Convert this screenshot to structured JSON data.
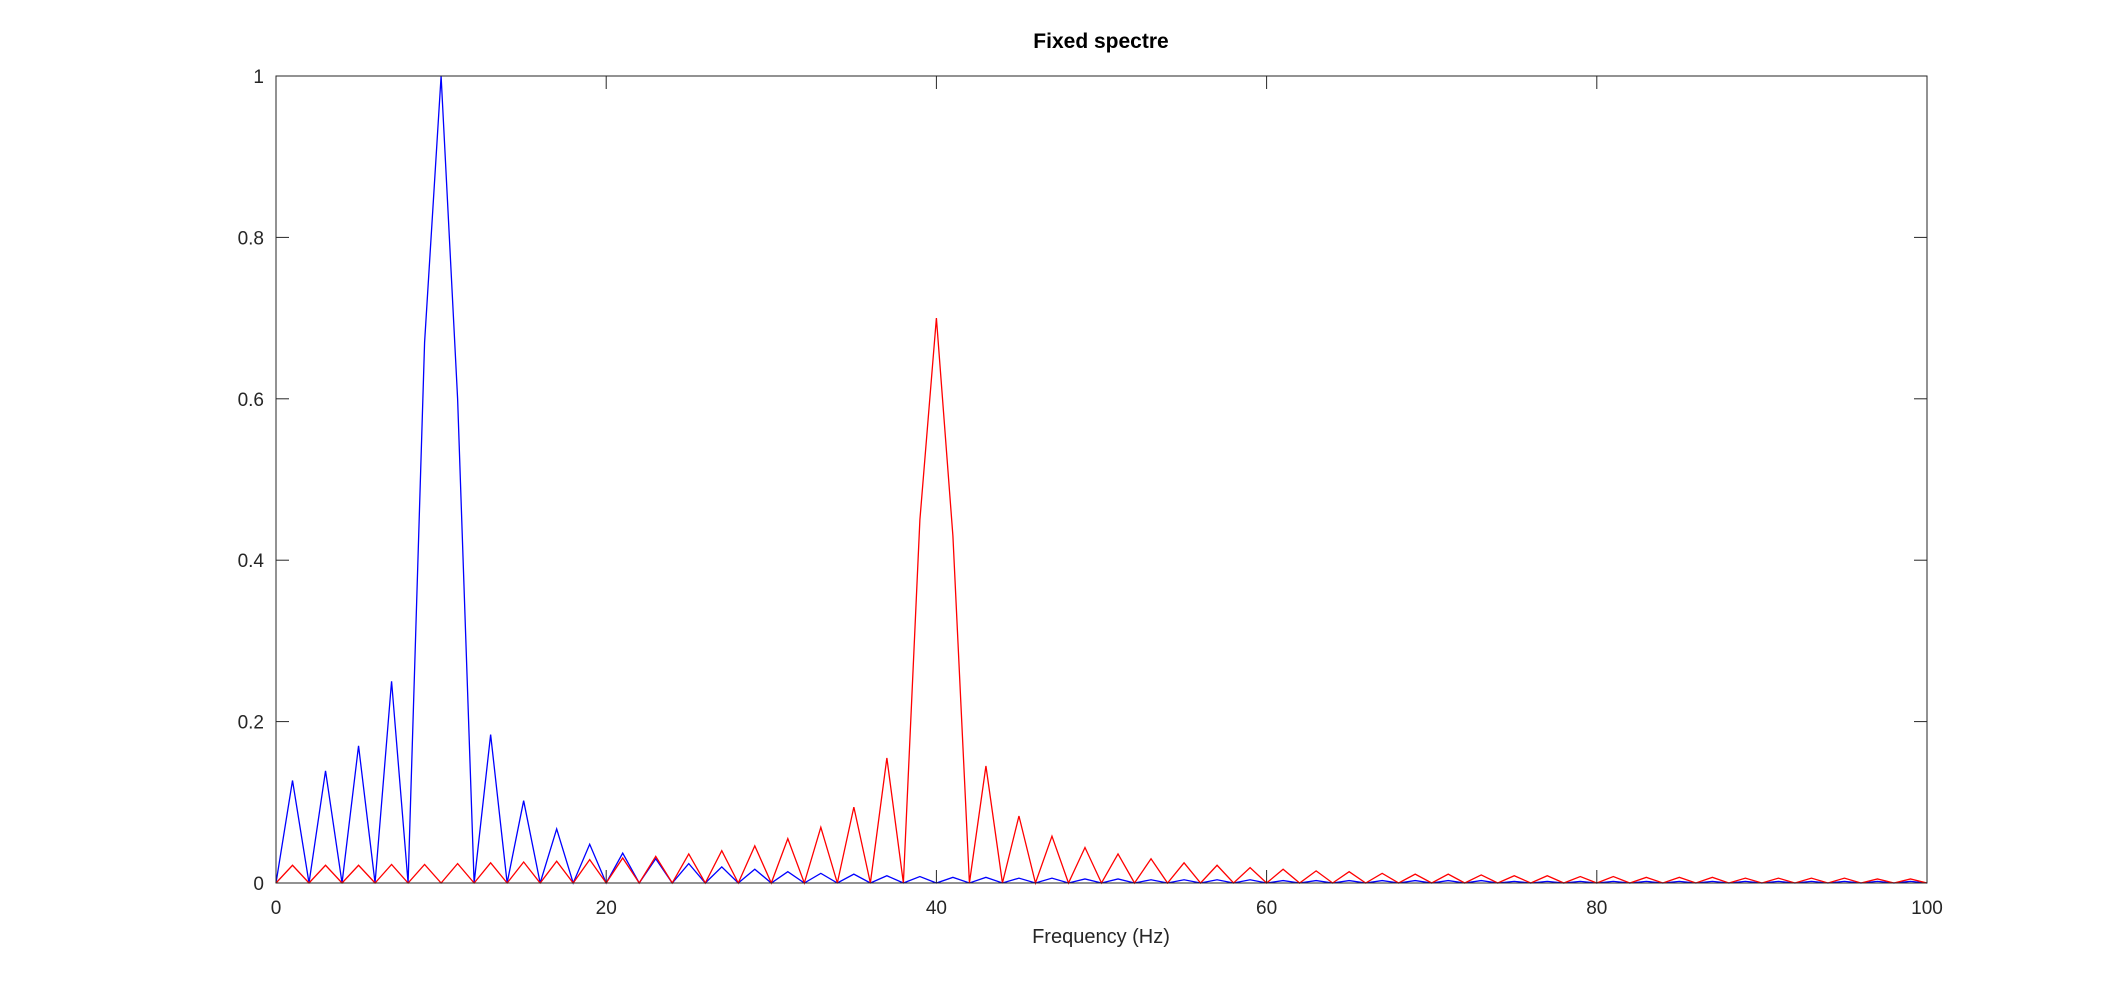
{
  "chart_data": {
    "type": "line",
    "title": "Fixed spectre",
    "xlabel": "Frequency (Hz)",
    "ylabel": "",
    "xlim": [
      0,
      100
    ],
    "ylim": [
      0,
      1
    ],
    "xticks": [
      0,
      20,
      40,
      60,
      80,
      100
    ],
    "xtick_labels": [
      "0",
      "20",
      "40",
      "60",
      "80",
      "100"
    ],
    "yticks": [
      0,
      0.2,
      0.4,
      0.6,
      0.8,
      1
    ],
    "ytick_labels": [
      "0",
      "0.2",
      "0.4",
      "0.6",
      "0.8",
      "1"
    ],
    "grid": false,
    "legend": "none",
    "x": [
      0,
      1,
      2,
      3,
      4,
      5,
      6,
      7,
      8,
      9,
      10,
      11,
      12,
      13,
      14,
      15,
      16,
      17,
      18,
      19,
      20,
      21,
      22,
      23,
      24,
      25,
      26,
      27,
      28,
      29,
      30,
      31,
      32,
      33,
      34,
      35,
      36,
      37,
      38,
      39,
      40,
      41,
      42,
      43,
      44,
      45,
      46,
      47,
      48,
      49,
      50,
      51,
      52,
      53,
      54,
      55,
      56,
      57,
      58,
      59,
      60,
      61,
      62,
      63,
      64,
      65,
      66,
      67,
      68,
      69,
      70,
      71,
      72,
      73,
      74,
      75,
      76,
      77,
      78,
      79,
      80,
      81,
      82,
      83,
      84,
      85,
      86,
      87,
      88,
      89,
      90,
      91,
      92,
      93,
      94,
      95,
      96,
      97,
      98,
      99,
      100
    ],
    "series": [
      {
        "color": "#0000ff",
        "values": [
          0,
          0.127,
          0,
          0.139,
          0,
          0.17,
          0,
          0.25,
          0,
          0.67,
          1,
          0.6,
          0,
          0.184,
          0,
          0.102,
          0,
          0.067,
          0,
          0.048,
          0,
          0.037,
          0,
          0.03,
          0,
          0.024,
          0,
          0.02,
          0,
          0.017,
          0,
          0.014,
          0,
          0.012,
          0,
          0.011,
          0,
          0.009,
          0,
          0.008,
          0,
          0.007,
          0,
          0.007,
          0,
          0.006,
          0,
          0.006,
          0,
          0.005,
          0,
          0.005,
          0,
          0.004,
          0,
          0.004,
          0,
          0.004,
          0,
          0.004,
          0,
          0.003,
          0,
          0.003,
          0,
          0.003,
          0,
          0.003,
          0,
          0.003,
          0,
          0.003,
          0,
          0.003,
          0,
          0.002,
          0,
          0.002,
          0,
          0.002,
          0,
          0.002,
          0,
          0.002,
          0,
          0.002,
          0,
          0.002,
          0,
          0.002,
          0,
          0.002,
          0,
          0.002,
          0,
          0.002,
          0,
          0.002,
          0,
          0.002,
          0
        ]
      },
      {
        "color": "#ff0000",
        "values": [
          0,
          0.022,
          0,
          0.022,
          0,
          0.022,
          0,
          0.023,
          0,
          0.023,
          0,
          0.024,
          0,
          0.025,
          0,
          0.026,
          0,
          0.027,
          0,
          0.029,
          0,
          0.031,
          0,
          0.033,
          0,
          0.036,
          0,
          0.04,
          0,
          0.046,
          0,
          0.055,
          0,
          0.069,
          0,
          0.094,
          0,
          0.155,
          0,
          0.45,
          0.7,
          0.43,
          0,
          0.145,
          0,
          0.083,
          0,
          0.058,
          0,
          0.044,
          0,
          0.036,
          0,
          0.03,
          0,
          0.025,
          0,
          0.022,
          0,
          0.019,
          0,
          0.017,
          0,
          0.015,
          0,
          0.014,
          0,
          0.012,
          0,
          0.011,
          0,
          0.011,
          0,
          0.01,
          0,
          0.009,
          0,
          0.009,
          0,
          0.008,
          0,
          0.008,
          0,
          0.007,
          0,
          0.007,
          0,
          0.007,
          0,
          0.006,
          0,
          0.006,
          0,
          0.006,
          0,
          0.006,
          0,
          0.005,
          0,
          0.005,
          0
        ]
      }
    ]
  }
}
